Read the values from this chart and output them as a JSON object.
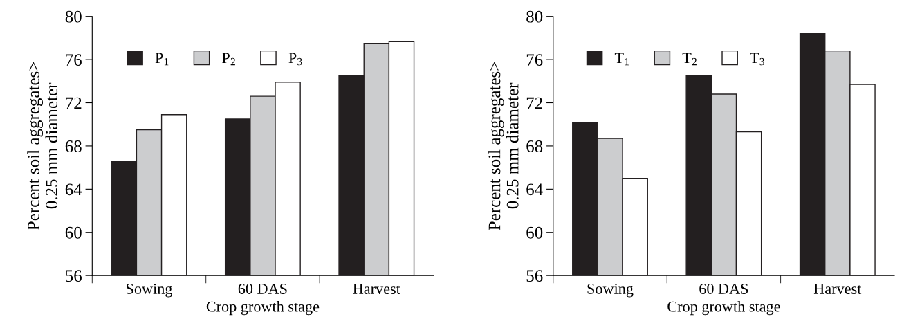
{
  "chart_data": [
    {
      "type": "bar",
      "xlabel": "Crop growth stage",
      "ylabel": "Percent soil aggregates>\n0.25 mm diameter",
      "categories": [
        "Sowing",
        "60 DAS",
        "Harvest"
      ],
      "ylim": [
        56,
        80
      ],
      "yticks": [
        56,
        60,
        64,
        68,
        72,
        76,
        80
      ],
      "legend": "top",
      "grid": false,
      "series": [
        {
          "name": "P$_{1}$",
          "color": "#231f20",
          "values": [
            66.6,
            70.5,
            74.5
          ]
        },
        {
          "name": "P$_{2}$",
          "color": "#cccdcf",
          "values": [
            69.5,
            72.6,
            77.5
          ]
        },
        {
          "name": "P$_{3}$",
          "color": "#ffffff",
          "values": [
            70.9,
            73.9,
            77.7
          ]
        }
      ]
    },
    {
      "type": "bar",
      "xlabel": "Crop growth stage",
      "ylabel": "Percent soil aggregates>\n0.25 mm diameter",
      "categories": [
        "Sowing",
        "60 DAS",
        "Harvest"
      ],
      "ylim": [
        56,
        80
      ],
      "yticks": [
        56,
        60,
        64,
        68,
        72,
        76,
        80
      ],
      "legend": "top",
      "grid": false,
      "series": [
        {
          "name": "T$_{1}$",
          "color": "#231f20",
          "values": [
            70.2,
            74.5,
            78.4
          ]
        },
        {
          "name": "T$_{2}$",
          "color": "#cccdcf",
          "values": [
            68.7,
            72.8,
            76.8
          ]
        },
        {
          "name": "T$_{3}$",
          "color": "#ffffff",
          "values": [
            65.0,
            69.3,
            73.7
          ]
        }
      ]
    }
  ]
}
